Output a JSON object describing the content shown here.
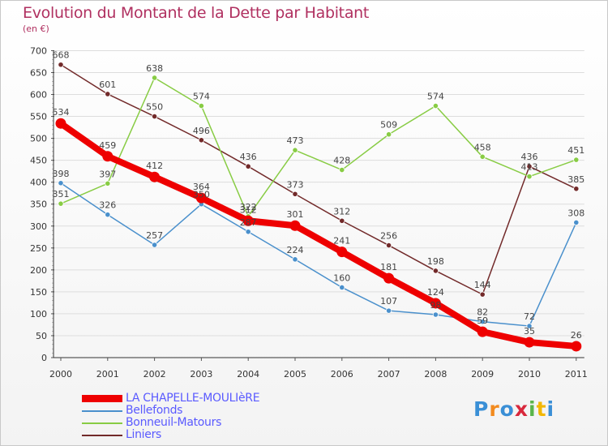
{
  "title": "Evolution du Montant de la Dette par Habitant",
  "unit": "(en €)",
  "logo": "Proxiti",
  "colors": {
    "title": "#b03060",
    "legend_text": "#5a5aff"
  },
  "chart_data": {
    "type": "line",
    "title": "Evolution du Montant de la Dette par Habitant",
    "ylabel": "(en €)",
    "xlabel": "",
    "ylim": [
      0,
      700
    ],
    "yticks": [
      0,
      50,
      100,
      150,
      200,
      250,
      300,
      350,
      400,
      450,
      500,
      550,
      600,
      650,
      700
    ],
    "grid": "horizontal",
    "legend_position": "bottom-left",
    "x": [
      "2000",
      "2001",
      "2002",
      "2003",
      "2004",
      "2005",
      "2006",
      "2007",
      "2008",
      "2009",
      "2010",
      "2011"
    ],
    "series": [
      {
        "name": "Liniers",
        "color": "#722a2a",
        "values": [
          668,
          601,
          550,
          496,
          436,
          373,
          312,
          256,
          198,
          144,
          436,
          385
        ]
      },
      {
        "name": "Bonneuil-Matours",
        "color": "#88cc44",
        "values": [
          351,
          397,
          638,
          574,
          322,
          473,
          428,
          509,
          574,
          458,
          413,
          451
        ]
      },
      {
        "name": "Bellefonds",
        "color": "#4a90cc",
        "values": [
          398,
          326,
          257,
          350,
          287,
          224,
          160,
          107,
          98,
          82,
          72,
          308
        ]
      },
      {
        "name": "LA CHAPELLE-MOULIèRE",
        "color": "#ee0000",
        "values": [
          534,
          459,
          412,
          364,
          312,
          301,
          241,
          181,
          124,
          59,
          35,
          26
        ]
      }
    ],
    "legend": [
      "LA CHAPELLE-MOULIèRE",
      "Bellefonds",
      "Bonneuil-Matours",
      "Liniers"
    ]
  }
}
